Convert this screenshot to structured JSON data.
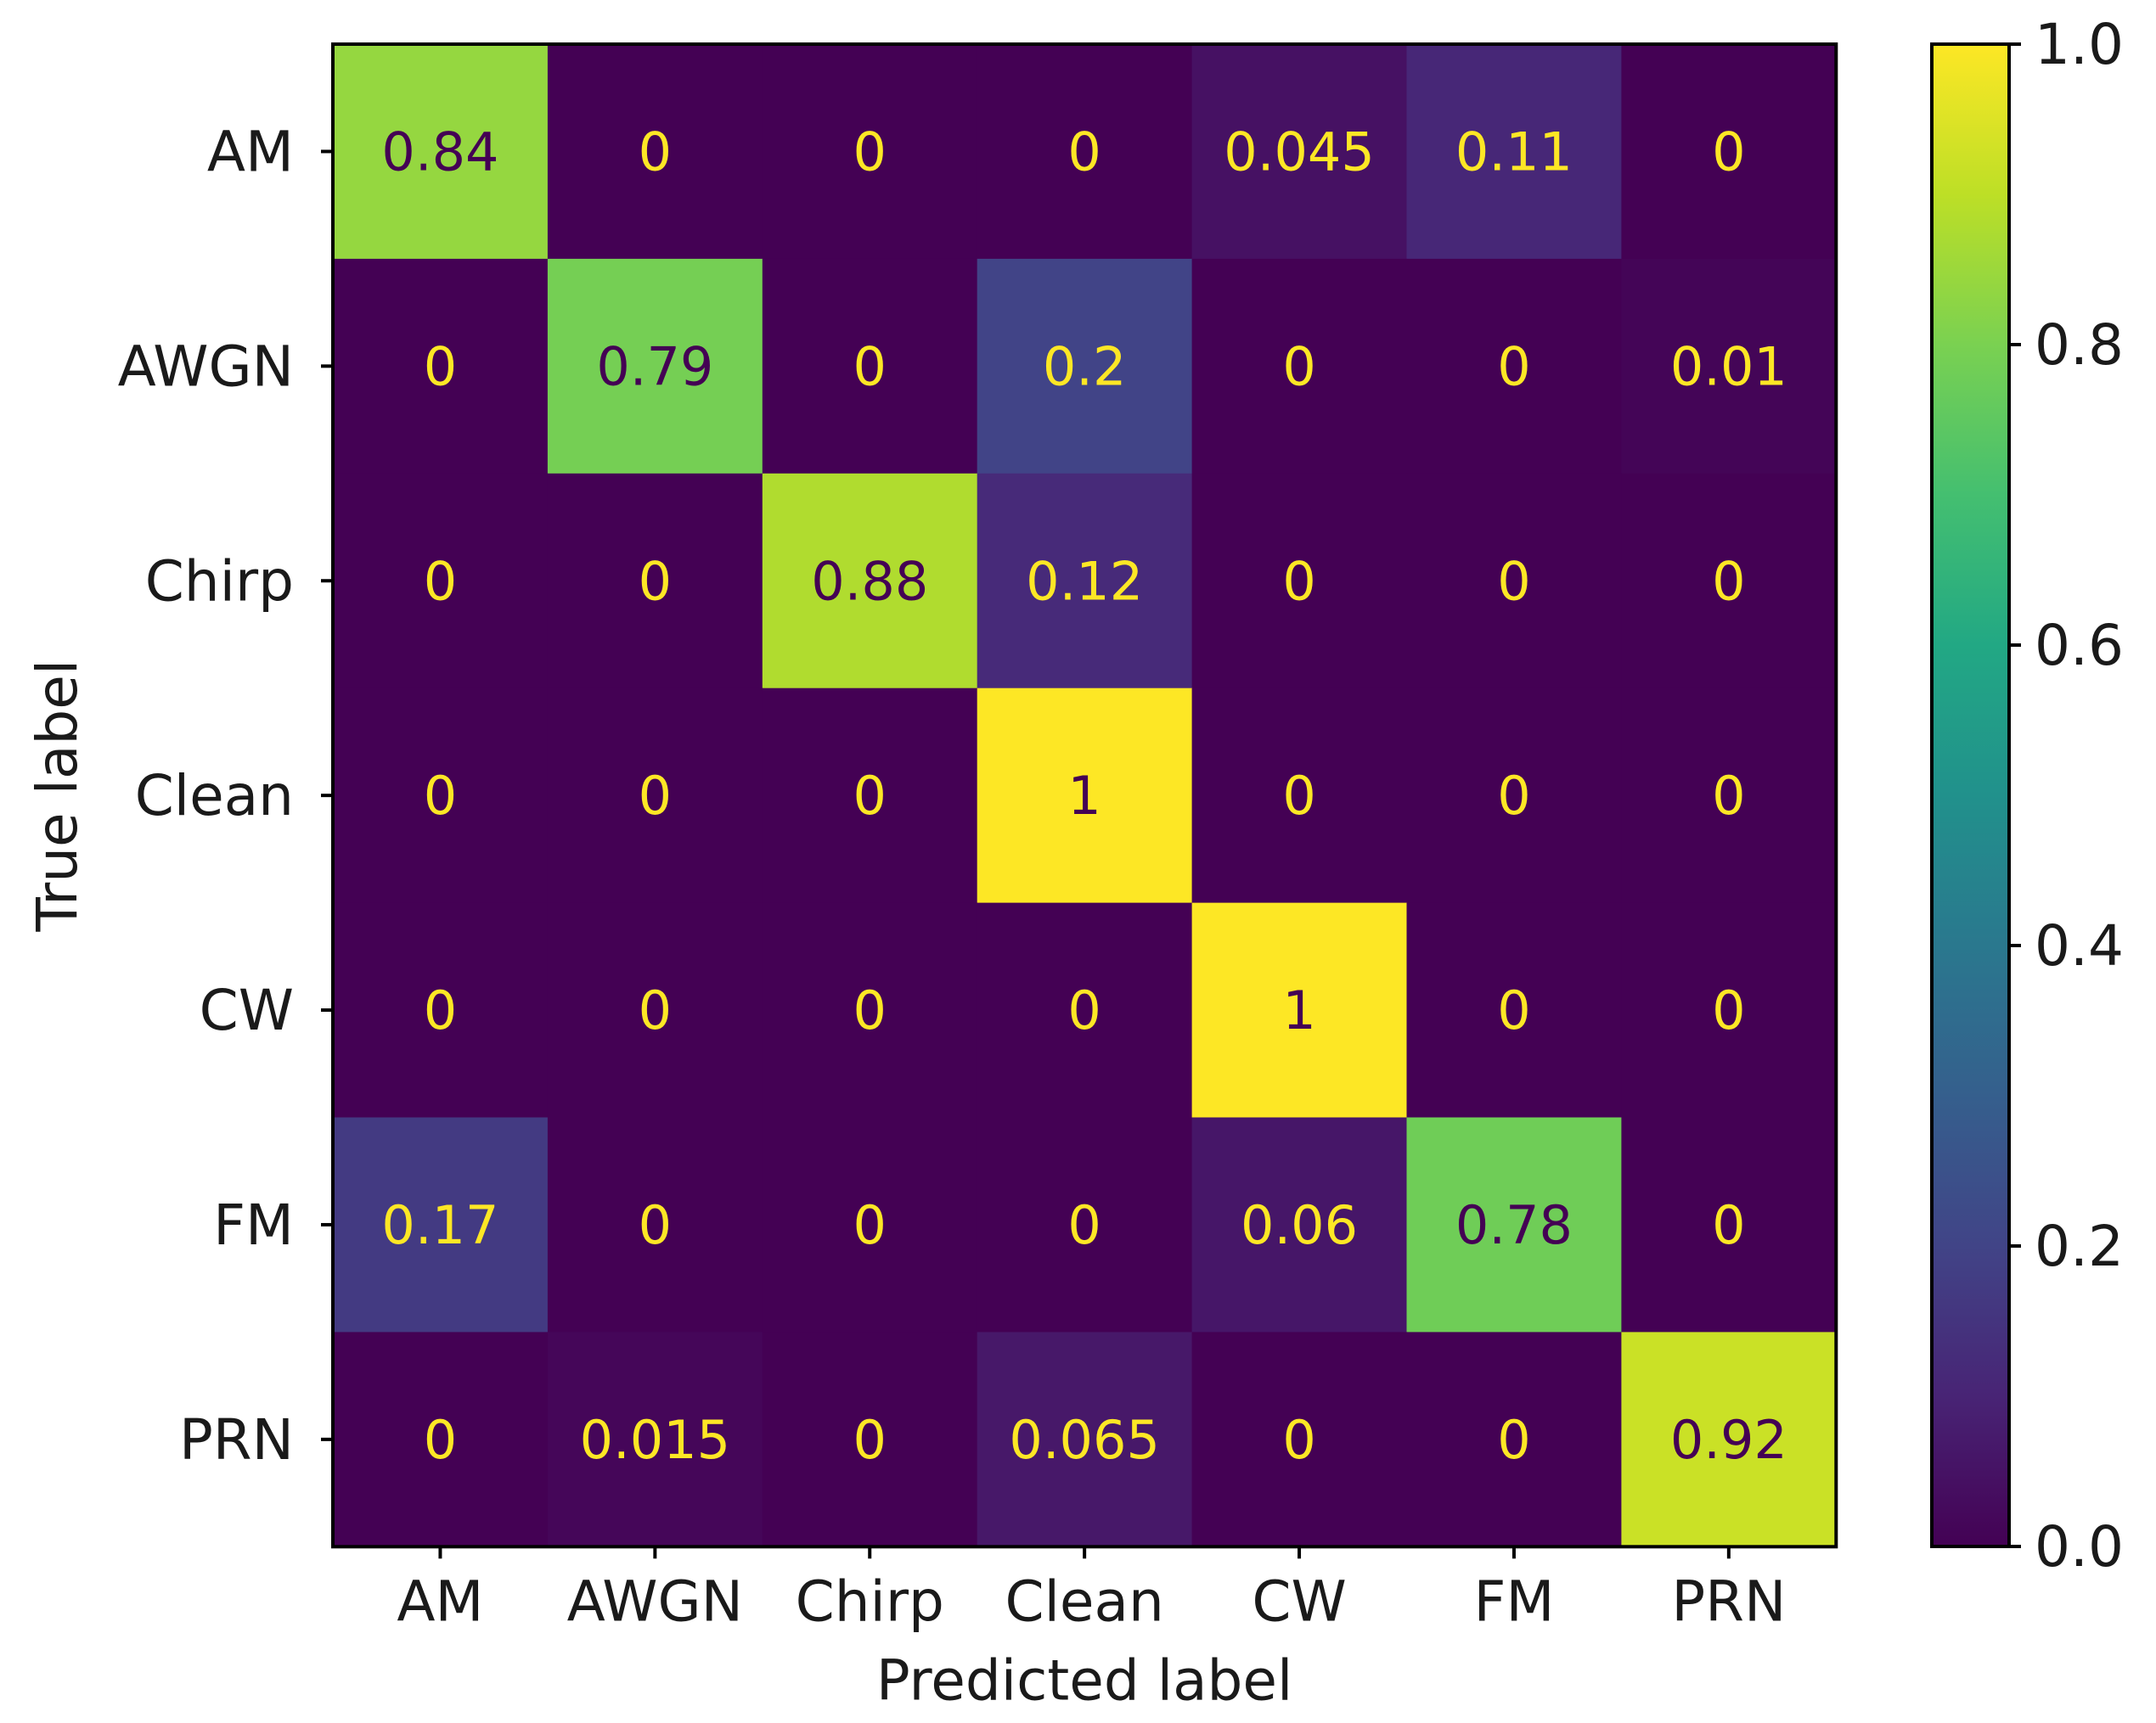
{
  "chart_data": {
    "type": "heatmap",
    "title": "",
    "xlabel": "Predicted label",
    "ylabel": "True label",
    "x_categories": [
      "AM",
      "AWGN",
      "Chirp",
      "Clean",
      "CW",
      "FM",
      "PRN"
    ],
    "y_categories": [
      "AM",
      "AWGN",
      "Chirp",
      "Clean",
      "CW",
      "FM",
      "PRN"
    ],
    "values": [
      [
        0.84,
        0,
        0,
        0,
        0.045,
        0.11,
        0
      ],
      [
        0,
        0.79,
        0,
        0.2,
        0,
        0,
        0.01
      ],
      [
        0,
        0,
        0.88,
        0.12,
        0,
        0,
        0
      ],
      [
        0,
        0,
        0,
        1,
        0,
        0,
        0
      ],
      [
        0,
        0,
        0,
        0,
        1,
        0,
        0
      ],
      [
        0.17,
        0,
        0,
        0,
        0.06,
        0.78,
        0
      ],
      [
        0,
        0.015,
        0,
        0.065,
        0,
        0,
        0.92
      ]
    ],
    "cell_labels": [
      [
        "0.84",
        "0",
        "0",
        "0",
        "0.045",
        "0.11",
        "0"
      ],
      [
        "0",
        "0.79",
        "0",
        "0.2",
        "0",
        "0",
        "0.01"
      ],
      [
        "0",
        "0",
        "0.88",
        "0.12",
        "0",
        "0",
        "0"
      ],
      [
        "0",
        "0",
        "0",
        "1",
        "0",
        "0",
        "0"
      ],
      [
        "0",
        "0",
        "0",
        "0",
        "1",
        "0",
        "0"
      ],
      [
        "0.17",
        "0",
        "0",
        "0",
        "0.06",
        "0.78",
        "0"
      ],
      [
        "0",
        "0.015",
        "0",
        "0.065",
        "0",
        "0",
        "0.92"
      ]
    ],
    "colormap": "viridis",
    "vmin": 0.0,
    "vmax": 1.0,
    "colorbar": {
      "ticks": [
        0.0,
        0.2,
        0.4,
        0.6,
        0.8,
        1.0
      ],
      "tick_labels": [
        "0.0",
        "0.2",
        "0.4",
        "0.6",
        "0.8",
        "1.0"
      ]
    },
    "label_colors": {
      "on_dark": "#fde725",
      "on_light": "#440154"
    }
  }
}
